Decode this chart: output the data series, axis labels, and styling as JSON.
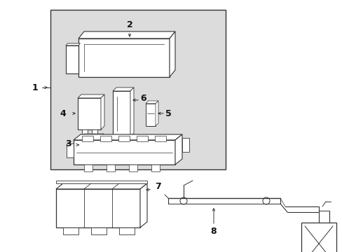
{
  "background_color": "#ffffff",
  "box_bg": "#dcdcdc",
  "figsize": [
    4.89,
    3.6
  ],
  "dpi": 100,
  "line_color": "#333333",
  "white": "#ffffff"
}
